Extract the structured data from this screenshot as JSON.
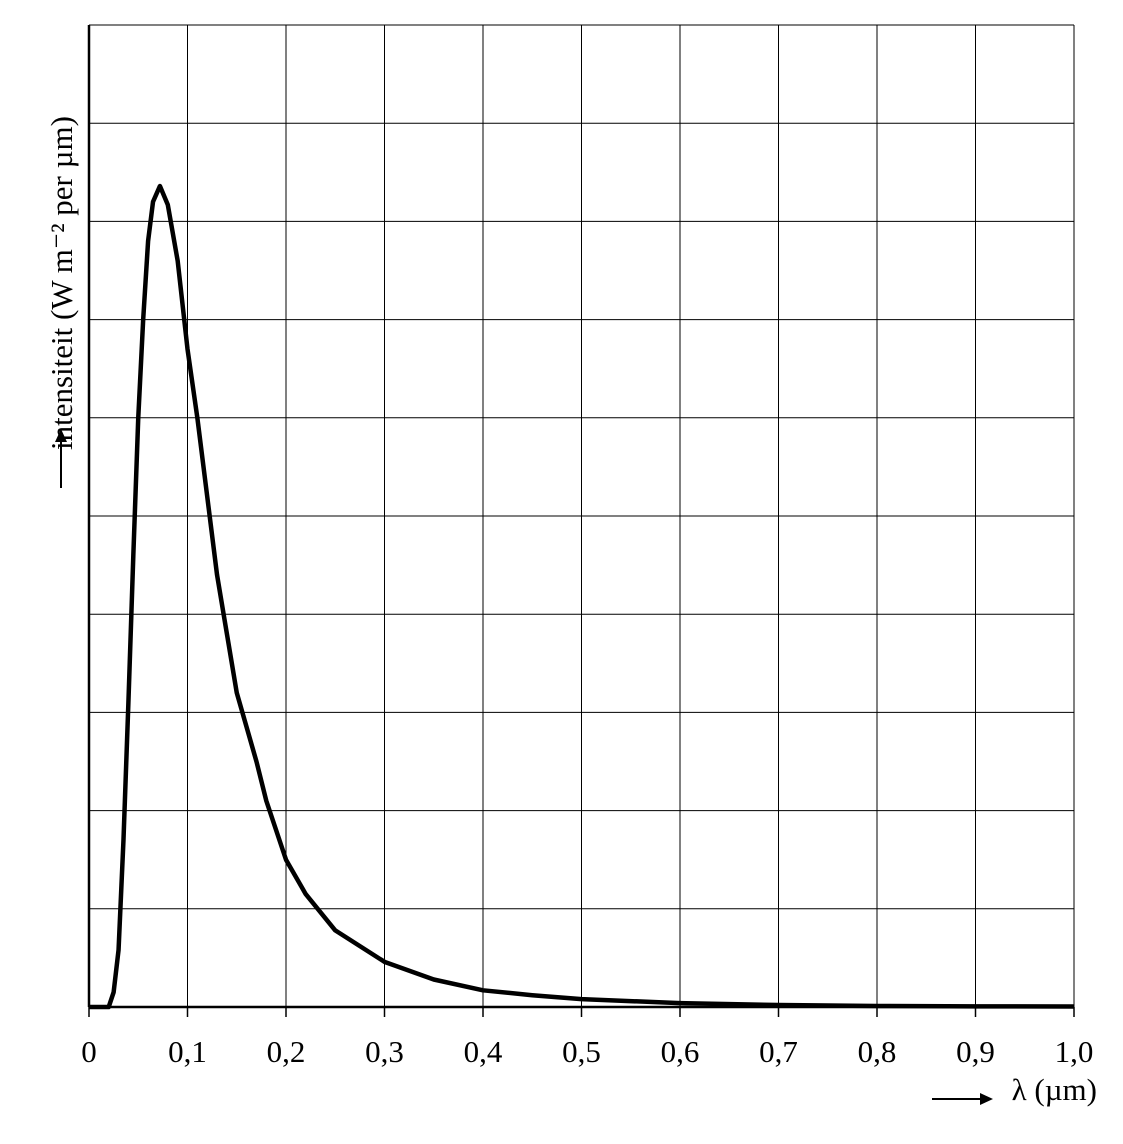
{
  "chart_data": {
    "type": "line",
    "x_label": "λ (µm)",
    "y_label": "intensiteit (W m⁻² per µm)",
    "xlim": [
      0,
      1.0
    ],
    "xticks": [
      0,
      {
        "value": 0.1,
        "label": "0,1"
      },
      {
        "value": 0.2,
        "label": "0,2"
      },
      {
        "value": 0.3,
        "label": "0,3"
      },
      {
        "value": 0.4,
        "label": "0,4"
      },
      {
        "value": 0.5,
        "label": "0,5"
      },
      {
        "value": 0.6,
        "label": "0,6"
      },
      {
        "value": 0.7,
        "label": "0,7"
      },
      {
        "value": 0.8,
        "label": "0,8"
      },
      {
        "value": 0.9,
        "label": "0,9"
      },
      {
        "value": 1.0,
        "label": "1,0"
      }
    ],
    "ylim": [
      0,
      10
    ],
    "y_grid_lines": [
      1,
      2,
      3,
      4,
      5,
      6,
      7,
      8,
      9,
      10
    ],
    "grid": true,
    "color": "#000000",
    "x": [
      0,
      0.02,
      0.025,
      0.03,
      0.035,
      0.04,
      0.045,
      0.05,
      0.055,
      0.06,
      0.065,
      0.072,
      0.08,
      0.09,
      0.1,
      0.11,
      0.12,
      0.13,
      0.14,
      0.15,
      0.17,
      0.18,
      0.2,
      0.22,
      0.25,
      0.3,
      0.35,
      0.4,
      0.45,
      0.5,
      0.6,
      0.7,
      0.8,
      0.9,
      1.0
    ],
    "values": [
      0,
      0,
      0.15,
      0.58,
      1.7,
      3.1,
      4.6,
      6.0,
      7.0,
      7.8,
      8.2,
      8.36,
      8.17,
      7.6,
      6.7,
      6.0,
      5.2,
      4.4,
      3.8,
      3.2,
      2.5,
      2.1,
      1.5,
      1.15,
      0.78,
      0.46,
      0.28,
      0.17,
      0.12,
      0.08,
      0.04,
      0.02,
      0.01,
      0.007,
      0.005
    ]
  }
}
